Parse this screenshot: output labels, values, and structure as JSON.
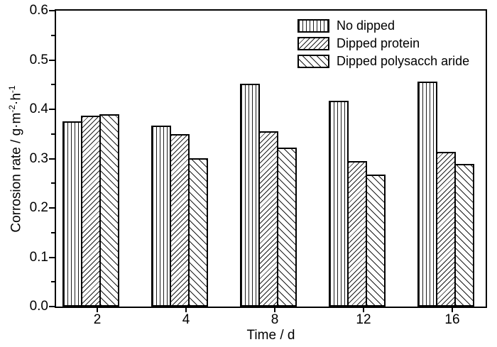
{
  "chart_data": {
    "type": "bar",
    "title": "",
    "xlabel": "Time / d",
    "ylabel": "Corrosion rate / g·m⁻²·h⁻¹",
    "ylabel_parts": {
      "prefix": "Corrosion rate / g·m",
      "sup1": "-2",
      "mid": "·h",
      "sup2": "-1"
    },
    "categories": [
      "2",
      "4",
      "8",
      "12",
      "16"
    ],
    "series": [
      {
        "name": "No dipped",
        "hatch": "vertical",
        "values": [
          0.375,
          0.367,
          0.452,
          0.417,
          0.456
        ]
      },
      {
        "name": "Dipped protein",
        "hatch": "forward-diagonal",
        "values": [
          0.387,
          0.349,
          0.355,
          0.295,
          0.314
        ]
      },
      {
        "name": "Dipped polysacch aride",
        "hatch": "backward-diagonal",
        "values": [
          0.39,
          0.3,
          0.323,
          0.267,
          0.289
        ]
      }
    ],
    "ylim": [
      0,
      0.6
    ],
    "ytick_labels": [
      "0.0",
      "0.1",
      "0.2",
      "0.3",
      "0.4",
      "0.5",
      "0.6"
    ],
    "minor_tick_step": 0.05,
    "grid": false,
    "legend_position": "top-right-inside",
    "colors": {
      "line": "#000000",
      "bar_fill": "#ffffff",
      "background": "#ffffff"
    }
  }
}
